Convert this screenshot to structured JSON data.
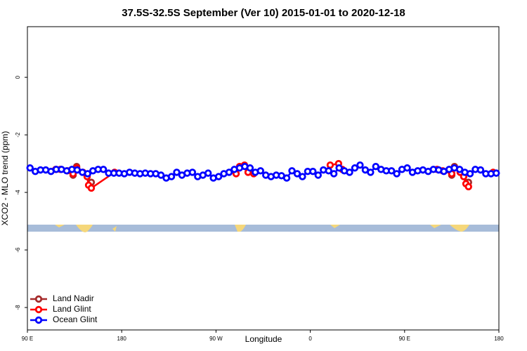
{
  "chart_data": {
    "type": "line",
    "title": "37.5S-32.5S September (Ver 10)   2015-01-01 to 2020-12-18",
    "x_label": "Longitude",
    "y_label": "XCO2 - MLO trend (ppm)",
    "xlim": [
      90,
      540
    ],
    "ylim": [
      -8.78,
      1.76
    ],
    "xticks": [
      {
        "value": 90,
        "label": "90 E"
      },
      180,
      {
        "value": 270,
        "label": "90 W"
      },
      {
        "value": 360,
        "label": "0"
      },
      {
        "value": 450,
        "label": "90 E"
      },
      {
        "value": 540,
        "label": "180"
      }
    ],
    "yticks": [
      0,
      -2,
      -4,
      -6,
      -8
    ],
    "legend": "bottom-left",
    "series": [
      {
        "name": "Land Nadir",
        "color": "#a52a2a",
        "x": [
          133.6,
          137,
          151,
          null,
          495,
          497.6,
          511
        ],
        "values": [
          -3.4,
          -3.1,
          -3.65,
          null,
          -3.4,
          -3.1,
          -3.65
        ]
      },
      {
        "name": "Land Glint",
        "color": "#ff0000",
        "x": [
          117,
          121.5,
          128.2,
          133.6,
          137,
          143,
          147,
          148.4,
          151,
          173.2,
          null,
          289.2,
          292.5,
          297.2,
          300.6,
          306,
          null,
          379,
          387,
          390.5,
          null,
          481,
          486.4,
          495,
          497.6,
          503,
          506.4,
          508.5,
          511,
          null,
          534.5
        ],
        "values": [
          -3.2,
          -3.2,
          -3.25,
          -3.35,
          -3.15,
          -3.3,
          -3.45,
          -3.75,
          -3.85,
          -3.3,
          null,
          -3.35,
          -3.1,
          -3.05,
          -3.3,
          -3.35,
          null,
          -3.05,
          -3.0,
          -3.2,
          null,
          -3.2,
          -3.25,
          -3.35,
          -3.15,
          -3.3,
          -3.45,
          -3.7,
          -3.8,
          null,
          -3.3
        ]
      },
      {
        "name": "Ocean Glint",
        "color": "#0000ff",
        "x": [
          92.5,
          97.5,
          102.5,
          107.5,
          112.5,
          117.5,
          122.5,
          127.5,
          132.5,
          137.5,
          142.5,
          147.5,
          152.5,
          157.5,
          162.5,
          167.5,
          172.5,
          177.5,
          182.5,
          187.5,
          192.5,
          197.5,
          202.5,
          207.5,
          212.5,
          217.5,
          222.5,
          227.5,
          232.5,
          237.5,
          242.5,
          247.5,
          252.5,
          257.5,
          262.5,
          267.5,
          272.5,
          277.5,
          282.5,
          287.5,
          292.5,
          297.5,
          302.5,
          307.5,
          312.5,
          317.5,
          322.5,
          327.5,
          332.5,
          337.5,
          342.5,
          347.5,
          352.5,
          357.5,
          362.5,
          367.5,
          372.5,
          377.5,
          382.5,
          387.5,
          392.5,
          397.5,
          402.5,
          407.5,
          412.5,
          417.5,
          422.5,
          427.5,
          432.5,
          437.5,
          442.5,
          447.5,
          452.5,
          457.5,
          462.5,
          467.5,
          472.5,
          477.5,
          482.5,
          487.5,
          492.5,
          497.5,
          502.5,
          507.5,
          512.5,
          517.5,
          522.5,
          527.5,
          532.5,
          537.5
        ],
        "values": [
          -3.15,
          -3.27,
          -3.22,
          -3.22,
          -3.27,
          -3.2,
          -3.2,
          -3.25,
          -3.2,
          -3.22,
          -3.3,
          -3.35,
          -3.25,
          -3.2,
          -3.2,
          -3.33,
          -3.33,
          -3.33,
          -3.35,
          -3.3,
          -3.33,
          -3.35,
          -3.33,
          -3.35,
          -3.35,
          -3.4,
          -3.5,
          -3.45,
          -3.3,
          -3.4,
          -3.33,
          -3.3,
          -3.45,
          -3.4,
          -3.33,
          -3.5,
          -3.45,
          -3.35,
          -3.3,
          -3.2,
          -3.15,
          -3.1,
          -3.15,
          -3.3,
          -3.25,
          -3.4,
          -3.45,
          -3.4,
          -3.42,
          -3.5,
          -3.25,
          -3.35,
          -3.45,
          -3.27,
          -3.27,
          -3.4,
          -3.22,
          -3.25,
          -3.35,
          -3.15,
          -3.25,
          -3.3,
          -3.15,
          -3.05,
          -3.22,
          -3.3,
          -3.1,
          -3.2,
          -3.25,
          -3.25,
          -3.35,
          -3.2,
          -3.15,
          -3.3,
          -3.25,
          -3.22,
          -3.27,
          -3.2,
          -3.22,
          -3.27,
          -3.2,
          -3.15,
          -3.2,
          -3.3,
          -3.35,
          -3.2,
          -3.22,
          -3.35,
          -3.35,
          -3.33
        ]
      }
    ]
  }
}
